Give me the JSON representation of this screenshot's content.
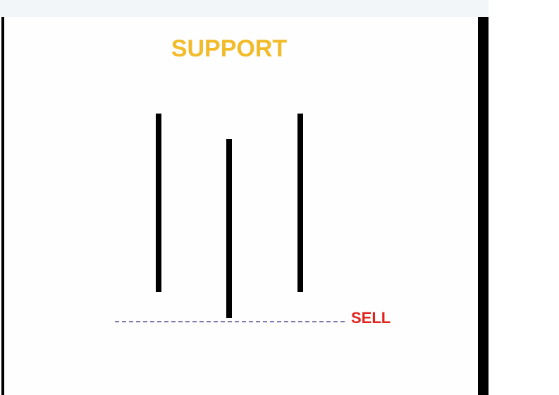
{
  "diagram": {
    "title": "SUPPORT",
    "level_label": "SELL",
    "colors": {
      "title": "#f2bb2a",
      "level_label": "#e0231c",
      "sticks": "#000000",
      "level_line": "#7a7ab0"
    },
    "sticks": [
      {
        "name": "stick-1"
      },
      {
        "name": "stick-2"
      },
      {
        "name": "stick-3"
      }
    ]
  }
}
